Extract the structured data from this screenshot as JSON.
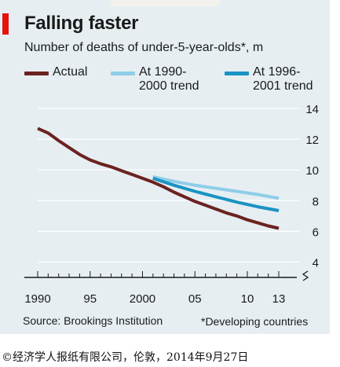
{
  "header": {
    "title": "Falling faster",
    "subtitle": "Number of deaths of under-5-year-olds*, m"
  },
  "legend": [
    {
      "label_lines": [
        "Actual"
      ],
      "color": "#6b2220"
    },
    {
      "label_lines": [
        "At 1990-",
        "2000 trend"
      ],
      "color": "#8fcde8"
    },
    {
      "label_lines": [
        "At 1996-",
        "2001 trend"
      ],
      "color": "#1a93c3"
    }
  ],
  "footer": {
    "source": "Source: Brookings Institution",
    "footnote": "*Developing countries",
    "credit": "©经济学人报纸有限公司，伦敦，2014年9月27日"
  },
  "colors": {
    "background": "#e6eef2",
    "accent": "#e3120b",
    "actual": "#6b2220",
    "trend_1990_2000": "#8fcde8",
    "trend_1996_2001": "#1a93c3"
  },
  "chart_data": {
    "type": "line",
    "x_tick_labels": [
      "1990",
      "95",
      "2000",
      "05",
      "10",
      "13"
    ],
    "x_tick_years": [
      1990,
      1995,
      2000,
      2005,
      2010,
      2013
    ],
    "y_ticks": [
      4,
      6,
      8,
      10,
      12,
      14
    ],
    "ylim": [
      3,
      14
    ],
    "xlim": [
      1990,
      2013
    ],
    "y_axis_side": "right",
    "y_axis_break": true,
    "grid": true,
    "series": [
      {
        "name": "Actual",
        "color": "#6b2220",
        "x": [
          1990,
          1991,
          1992,
          1993,
          1994,
          1995,
          1996,
          1997,
          1998,
          1999,
          2000,
          2001,
          2002,
          2003,
          2004,
          2005,
          2006,
          2007,
          2008,
          2009,
          2010,
          2011,
          2012,
          2013
        ],
        "values": [
          12.7,
          12.4,
          11.9,
          11.45,
          11.0,
          10.65,
          10.4,
          10.2,
          9.95,
          9.7,
          9.45,
          9.2,
          8.9,
          8.55,
          8.25,
          7.95,
          7.7,
          7.45,
          7.2,
          7.0,
          6.75,
          6.55,
          6.35,
          6.2
        ]
      },
      {
        "name": "At 1990-2000 trend",
        "color": "#8fcde8",
        "x": [
          2001,
          2003,
          2005,
          2007,
          2009,
          2011,
          2013
        ],
        "values": [
          9.55,
          9.25,
          9.0,
          8.8,
          8.6,
          8.4,
          8.15
        ]
      },
      {
        "name": "At 1996-2001 trend",
        "color": "#1a93c3",
        "x": [
          2001,
          2003,
          2005,
          2007,
          2009,
          2011,
          2013
        ],
        "values": [
          9.45,
          9.0,
          8.6,
          8.25,
          7.9,
          7.6,
          7.35
        ]
      }
    ]
  }
}
